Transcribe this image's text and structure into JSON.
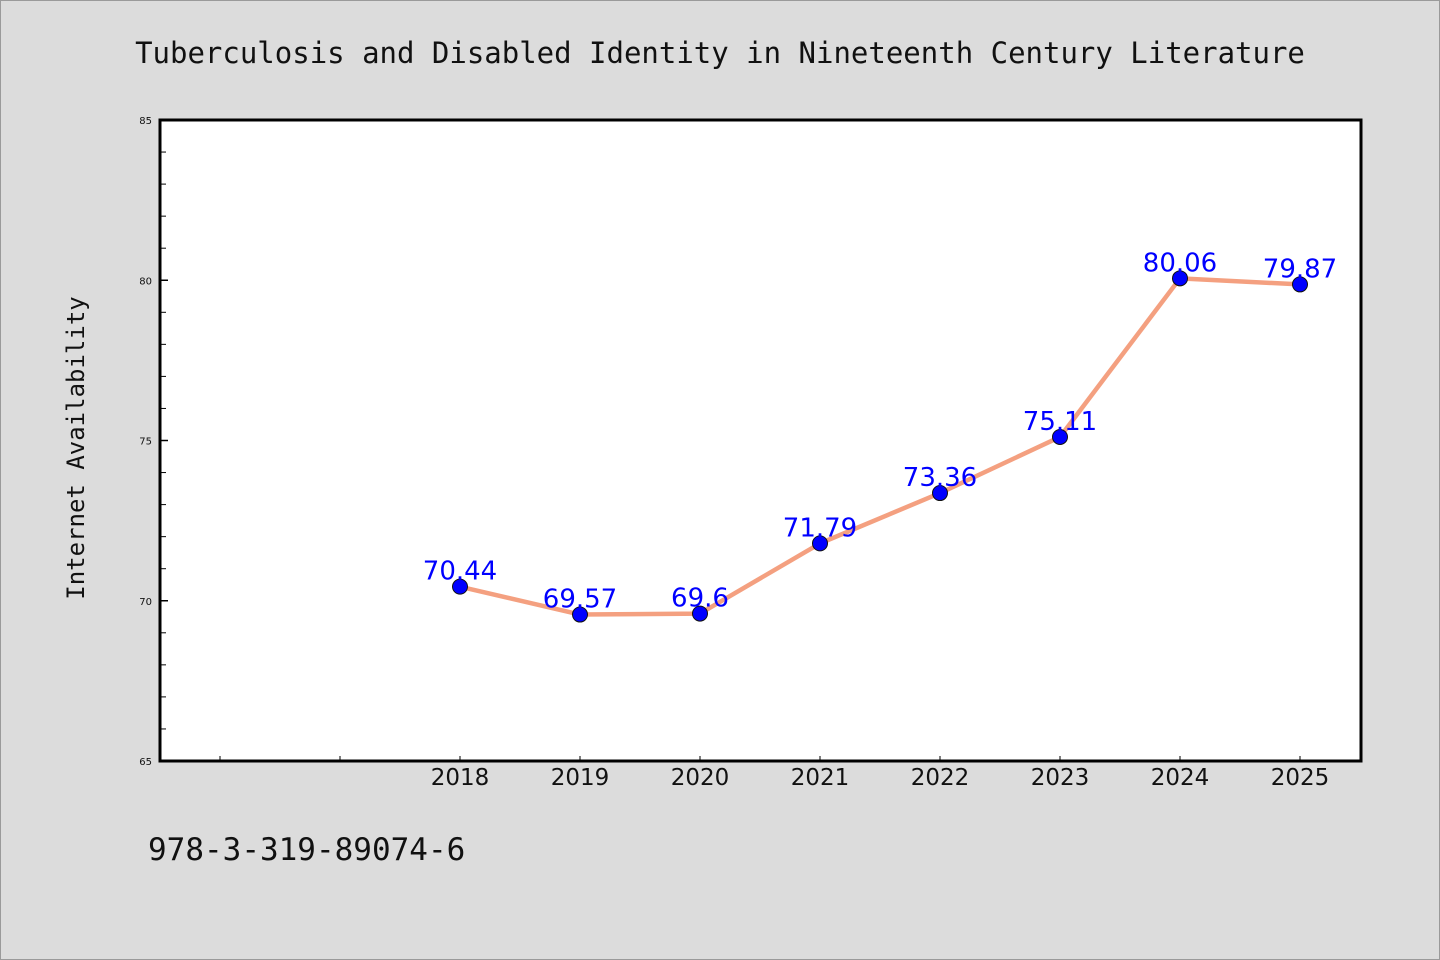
{
  "footer": {
    "code": "978-3-319-89074-6"
  },
  "colors": {
    "background": "#dcdcdc",
    "plot_background": "#ffffff",
    "line": "#f4a080",
    "marker": "#0000ff",
    "label": "#0000ff"
  },
  "chart_data": {
    "type": "line",
    "title": "Tuberculosis and Disabled Identity in Nineteenth Century Literature",
    "xlabel": "",
    "ylabel": "Internet Availability",
    "categories": [
      "2018",
      "2019",
      "2020",
      "2021",
      "2022",
      "2023",
      "2024",
      "2025"
    ],
    "x_slots_before_data": 2,
    "series": [
      {
        "values": [
          70.44,
          69.57,
          69.6,
          71.79,
          73.36,
          75.11,
          80.06,
          79.87
        ],
        "labels": [
          "70.44",
          "69.57",
          "69.6",
          "71.79",
          "73.36",
          "75.11",
          "80.06",
          "79.87"
        ]
      }
    ],
    "ylim": [
      65,
      85
    ],
    "yticks": [
      "65",
      "70",
      "75",
      "80",
      "85"
    ],
    "y_minor_step": 1,
    "grid": false,
    "legend": "none"
  }
}
